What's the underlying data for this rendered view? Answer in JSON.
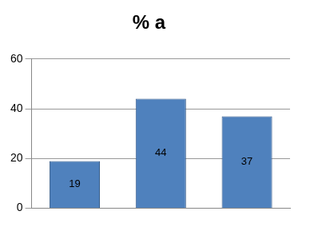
{
  "chart_data": {
    "type": "bar",
    "title": "% a",
    "categories": [
      null,
      null,
      null
    ],
    "values": [
      19,
      44,
      37
    ],
    "color": "#4f81bd",
    "ylim": [
      0,
      60
    ],
    "yticks": [
      0,
      20,
      40,
      60
    ],
    "grid": true,
    "data_labels": true
  }
}
